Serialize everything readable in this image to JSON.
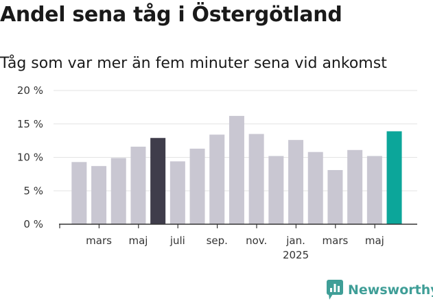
{
  "title": "Andel sena tåg i Östergötland",
  "subtitle": "Tåg som var mer än fem minuter sena vid ankomst",
  "brand": {
    "name": "Newsworthy",
    "color": "#3f9e97",
    "icon": "bar-chart-bubble-icon"
  },
  "colors": {
    "bar_default": "#c9c7d2",
    "bar_highlight_dark": "#3f3d4b",
    "bar_highlight_accent": "#0ca69a",
    "grid": "#e3e3e3",
    "axis": "#333333"
  },
  "chart_data": {
    "type": "bar",
    "title": "Andel sena tåg i Östergötland",
    "subtitle": "Tåg som var mer än fem minuter sena vid ankomst",
    "xlabel": "",
    "ylabel": "",
    "ylim": [
      0,
      20
    ],
    "y_ticks": [
      "0 %",
      "5 %",
      "10 %",
      "15 %",
      "20 %"
    ],
    "y_tick_values": [
      0,
      5,
      10,
      15,
      20
    ],
    "grid": true,
    "categories": [
      "2024-02",
      "2024-03",
      "2024-04",
      "2024-05",
      "2024-06",
      "2024-07",
      "2024-08",
      "2024-09",
      "2024-10",
      "2024-11",
      "2024-12",
      "2025-01",
      "2025-02",
      "2025-03",
      "2025-04",
      "2025-05",
      "2025-06"
    ],
    "x_tick_labels": [
      {
        "index": 1,
        "label": "mars"
      },
      {
        "index": 3,
        "label": "maj"
      },
      {
        "index": 5,
        "label": "juli"
      },
      {
        "index": 7,
        "label": "sep."
      },
      {
        "index": 9,
        "label": "nov."
      },
      {
        "index": 11,
        "label": "jan.",
        "sub": "2025"
      },
      {
        "index": 13,
        "label": "mars"
      },
      {
        "index": 15,
        "label": "maj"
      }
    ],
    "values": [
      9.3,
      8.7,
      9.9,
      11.6,
      12.9,
      9.4,
      11.3,
      13.4,
      16.2,
      13.5,
      10.2,
      12.6,
      10.8,
      8.1,
      11.1,
      10.2,
      13.9
    ],
    "highlight": [
      {
        "index": 4,
        "color": "#3f3d4b"
      },
      {
        "index": 16,
        "color": "#0ca69a"
      }
    ]
  }
}
